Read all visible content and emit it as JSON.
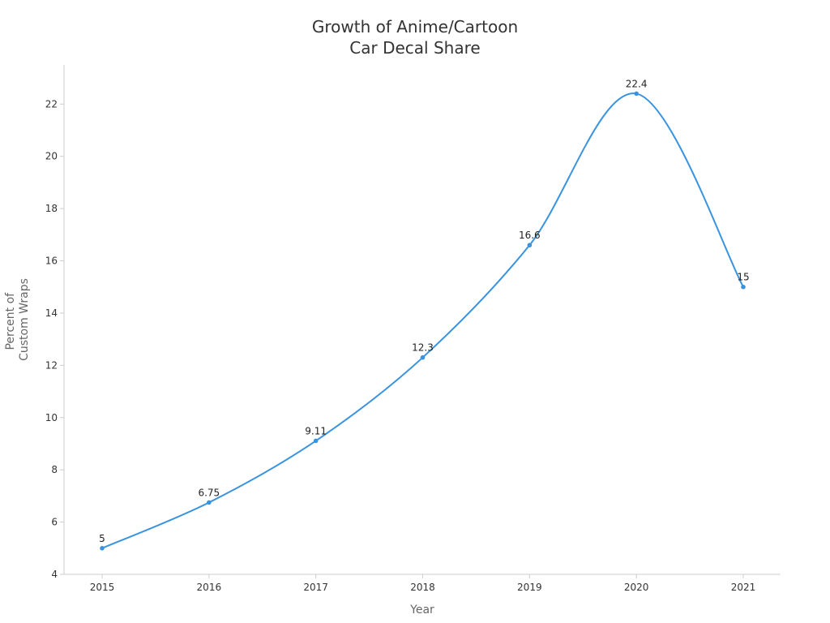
{
  "chart_data": {
    "type": "line",
    "title_lines": [
      "Growth of Anime/Cartoon",
      "Car Decal Share"
    ],
    "xlabel": "Year",
    "ylabel_lines": [
      "Percent of",
      "Custom Wraps"
    ],
    "x": [
      "2015",
      "2016",
      "2017",
      "2018",
      "2019",
      "2020",
      "2021"
    ],
    "series": [
      {
        "values": [
          5,
          6.75,
          9.11,
          12.3,
          16.6,
          22.4,
          15
        ],
        "labels": [
          "5",
          "6.75",
          "9.11",
          "12.3",
          "16.6",
          "22.4",
          "15"
        ]
      }
    ],
    "y_ticks": [
      "4",
      "6",
      "8",
      "10",
      "12",
      "14",
      "16",
      "18",
      "20",
      "22"
    ],
    "ylim": [
      4,
      23.5
    ],
    "smooth": true,
    "grid": false,
    "colors": {
      "line": "#3a93de",
      "axis": "#cccccc"
    }
  }
}
